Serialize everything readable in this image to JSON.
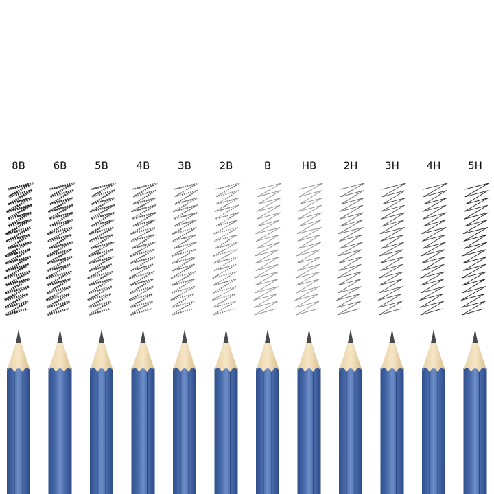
{
  "grades": [
    "8B",
    "6B",
    "5B",
    "4B",
    "3B",
    "2B",
    "B",
    "HB",
    "2H",
    "3H",
    "4H",
    "5H"
  ]
}
